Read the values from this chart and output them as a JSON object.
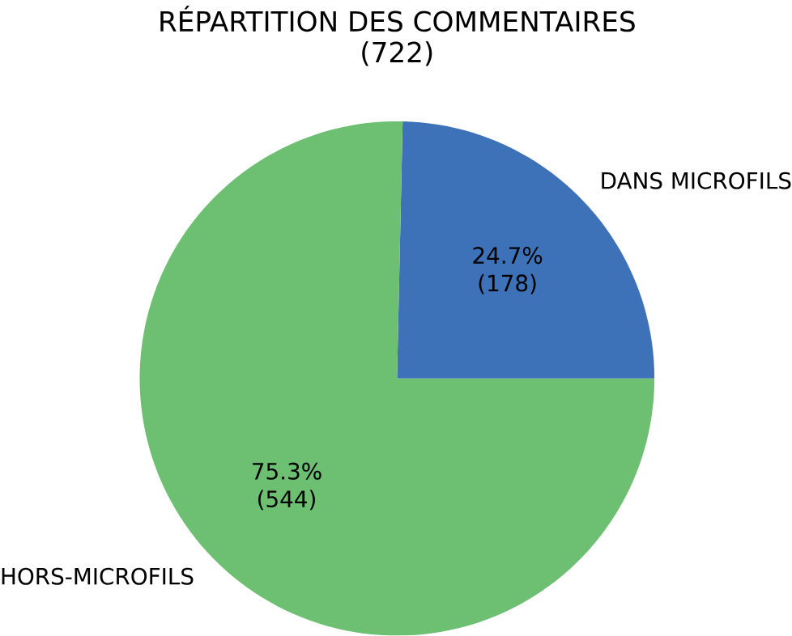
{
  "chart_data": {
    "type": "pie",
    "title": "RÉPARTITION DES COMMENTAIRES",
    "subtitle": "(722)",
    "categories": [
      "DANS MICROFILS",
      "HORS-MICROFILS"
    ],
    "values": [
      178,
      544
    ],
    "colors": [
      "#3d72b8",
      "#6dbf71"
    ],
    "value_labels": [
      "24.7% (178)",
      "75.3% (544)"
    ]
  }
}
